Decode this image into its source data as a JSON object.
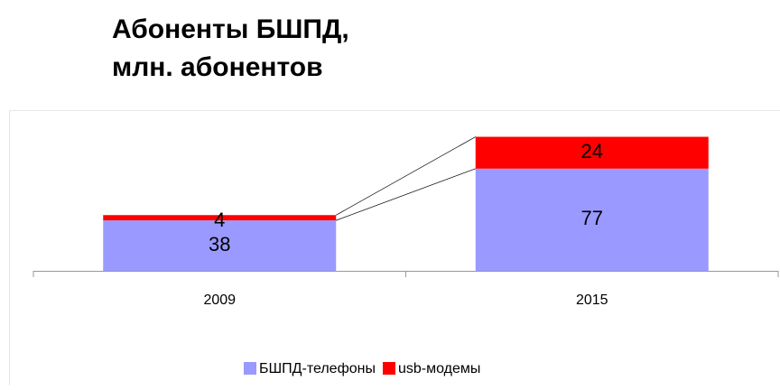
{
  "chart_data": {
    "type": "stacked-bar",
    "title": [
      "Абоненты БШПД,",
      "млн. абонентов"
    ],
    "categories": [
      "2009",
      "2015"
    ],
    "series": [
      {
        "name": "БШПД-телефоны",
        "color": "#9999ff",
        "values": [
          38,
          77
        ]
      },
      {
        "name": "usb-модемы",
        "color": "#ff0000",
        "values": [
          4,
          24
        ]
      }
    ],
    "legend": "bottom"
  }
}
